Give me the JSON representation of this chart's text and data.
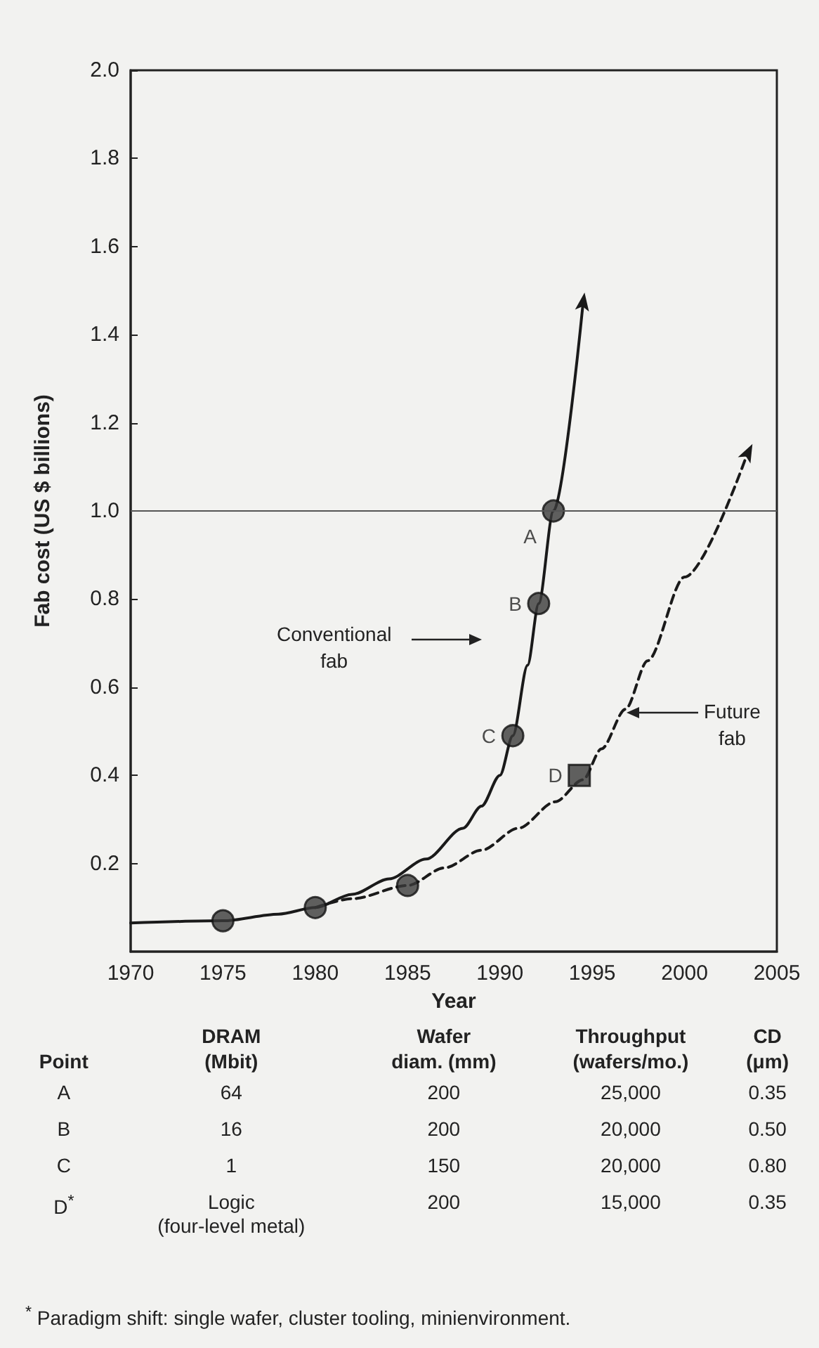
{
  "chart_data": {
    "type": "line",
    "xlabel": "Year",
    "ylabel": "Fab cost (US $ billions)",
    "xlim": [
      1970,
      2005
    ],
    "xticks": [
      1970,
      1975,
      1980,
      1985,
      1990,
      1995,
      2000,
      2005
    ],
    "ylim": [
      0,
      2.0
    ],
    "yticks": [
      {
        "value": 0.2,
        "label": "0.2"
      },
      {
        "value": 0.4,
        "label": "0.4"
      },
      {
        "value": 0.6,
        "label": "0.6"
      },
      {
        "value": 0.8,
        "label": "0.8"
      },
      {
        "value": 1.0,
        "label": "1.0"
      },
      {
        "value": 1.2,
        "label": "1.2"
      },
      {
        "value": 1.4,
        "label": "1.4"
      },
      {
        "value": 1.6,
        "label": "1.6"
      },
      {
        "value": 1.8,
        "label": "1.8"
      },
      {
        "value": 2.0,
        "label": "2.0"
      }
    ],
    "grid": false,
    "ref_lines": [
      {
        "axis": "y",
        "value": 1.0,
        "color": "#555555"
      }
    ],
    "series": [
      {
        "x": [
          1970,
          1975,
          1978,
          1980,
          1982,
          1984,
          1986,
          1988,
          1989,
          1990,
          1990.7,
          1991.5,
          1992.1,
          1992.9,
          1994.5
        ],
        "values": [
          0.065,
          0.07,
          0.085,
          0.1,
          0.13,
          0.165,
          0.21,
          0.28,
          0.33,
          0.4,
          0.49,
          0.65,
          0.79,
          1.0,
          1.47
        ],
        "color": "#1a1a1a",
        "line_style": "solid",
        "marker": "none"
      },
      {
        "x": [
          1980,
          1982,
          1985,
          1987,
          1989,
          1991,
          1993,
          1994.5,
          1995.5,
          1996.8,
          1998,
          2000,
          2003.4
        ],
        "values": [
          0.1,
          0.12,
          0.15,
          0.19,
          0.23,
          0.28,
          0.34,
          0.39,
          0.46,
          0.55,
          0.66,
          0.85,
          1.13
        ],
        "color": "#1a1a1a",
        "line_style": "dashed",
        "marker": "none"
      },
      {
        "type": "scatter",
        "x": [
          1975,
          1980,
          1985,
          1990.7,
          1992.1,
          1992.9
        ],
        "values": [
          0.07,
          0.1,
          0.15,
          0.49,
          0.79,
          1.0
        ],
        "color": "#3a3a3a",
        "marker": "circle"
      },
      {
        "type": "scatter",
        "x": [
          1994.3
        ],
        "values": [
          0.4
        ],
        "color": "#3a3a3a",
        "marker": "square"
      }
    ],
    "annotations": [
      "Conventional\nfab",
      "Future\nfab",
      {
        "text": "A",
        "x": 1992.9,
        "y": 1.0
      },
      {
        "text": "B",
        "x": 1992.1,
        "y": 0.79
      },
      {
        "text": "C",
        "x": 1990.7,
        "y": 0.49
      },
      {
        "text": "D",
        "x": 1994.3,
        "y": 0.4
      },
      "Point",
      "DRAM\n(Mbit)",
      "Wafer\ndiam. (mm)",
      "Throughput\n(wafers/mo.)",
      "CD\n(μm)",
      "A",
      "64",
      "200",
      "25,000",
      "0.35",
      "B",
      "16",
      "200",
      "20,000",
      "0.50",
      "C",
      "1",
      "150",
      "20,000",
      "0.80",
      "D$^{*}$",
      "Logic\n(four-level metal)",
      "200",
      "15,000",
      "0.35",
      "$^{*}$ Paradigm shift: single wafer, cluster tooling, minienvironment."
    ]
  }
}
